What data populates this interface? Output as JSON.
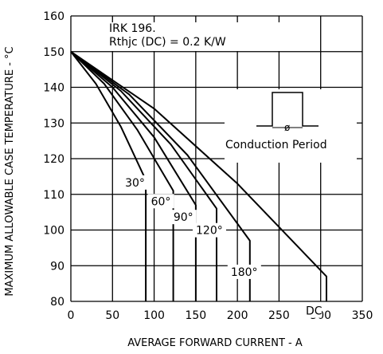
{
  "chart_data": {
    "type": "line",
    "title": "",
    "xlabel": "AVERAGE FORWARD CURRENT - A",
    "ylabel": "MAXIMUM ALLOWABLE CASE TEMPERATURE - °C",
    "xlim": [
      0,
      350
    ],
    "ylim": [
      80,
      160
    ],
    "xticks": [
      0,
      50,
      100,
      150,
      200,
      250,
      300,
      350
    ],
    "yticks": [
      80,
      90,
      100,
      110,
      120,
      130,
      140,
      150,
      160
    ],
    "grid": true,
    "annotations": {
      "device": "IRK 196.",
      "rthjc": "Rthjc (DC) = 0.2 K/W",
      "inset_label": "Conduction Period"
    },
    "series": [
      {
        "name": "30°",
        "label": "30°",
        "x": [
          0,
          30,
          60,
          90,
          90
        ],
        "y": [
          150,
          141,
          129,
          114,
          80
        ]
      },
      {
        "name": "60°",
        "label": "60°",
        "x": [
          0,
          40,
          80,
          123,
          123
        ],
        "y": [
          150,
          141,
          128,
          111,
          80
        ]
      },
      {
        "name": "90°",
        "label": "90°",
        "x": [
          0,
          50,
          100,
          150,
          150
        ],
        "y": [
          150,
          140,
          126,
          107,
          80
        ]
      },
      {
        "name": "120°",
        "label": "120°",
        "x": [
          0,
          60,
          120,
          175,
          175
        ],
        "y": [
          150,
          139,
          124,
          106,
          80
        ]
      },
      {
        "name": "180°",
        "label": "180°",
        "x": [
          0,
          70,
          140,
          215,
          215
        ],
        "y": [
          150,
          138,
          121,
          97,
          80
        ]
      },
      {
        "name": "DC",
        "label": "DC",
        "x": [
          0,
          100,
          200,
          307,
          307
        ],
        "y": [
          150,
          134,
          113,
          87,
          80
        ]
      }
    ]
  }
}
